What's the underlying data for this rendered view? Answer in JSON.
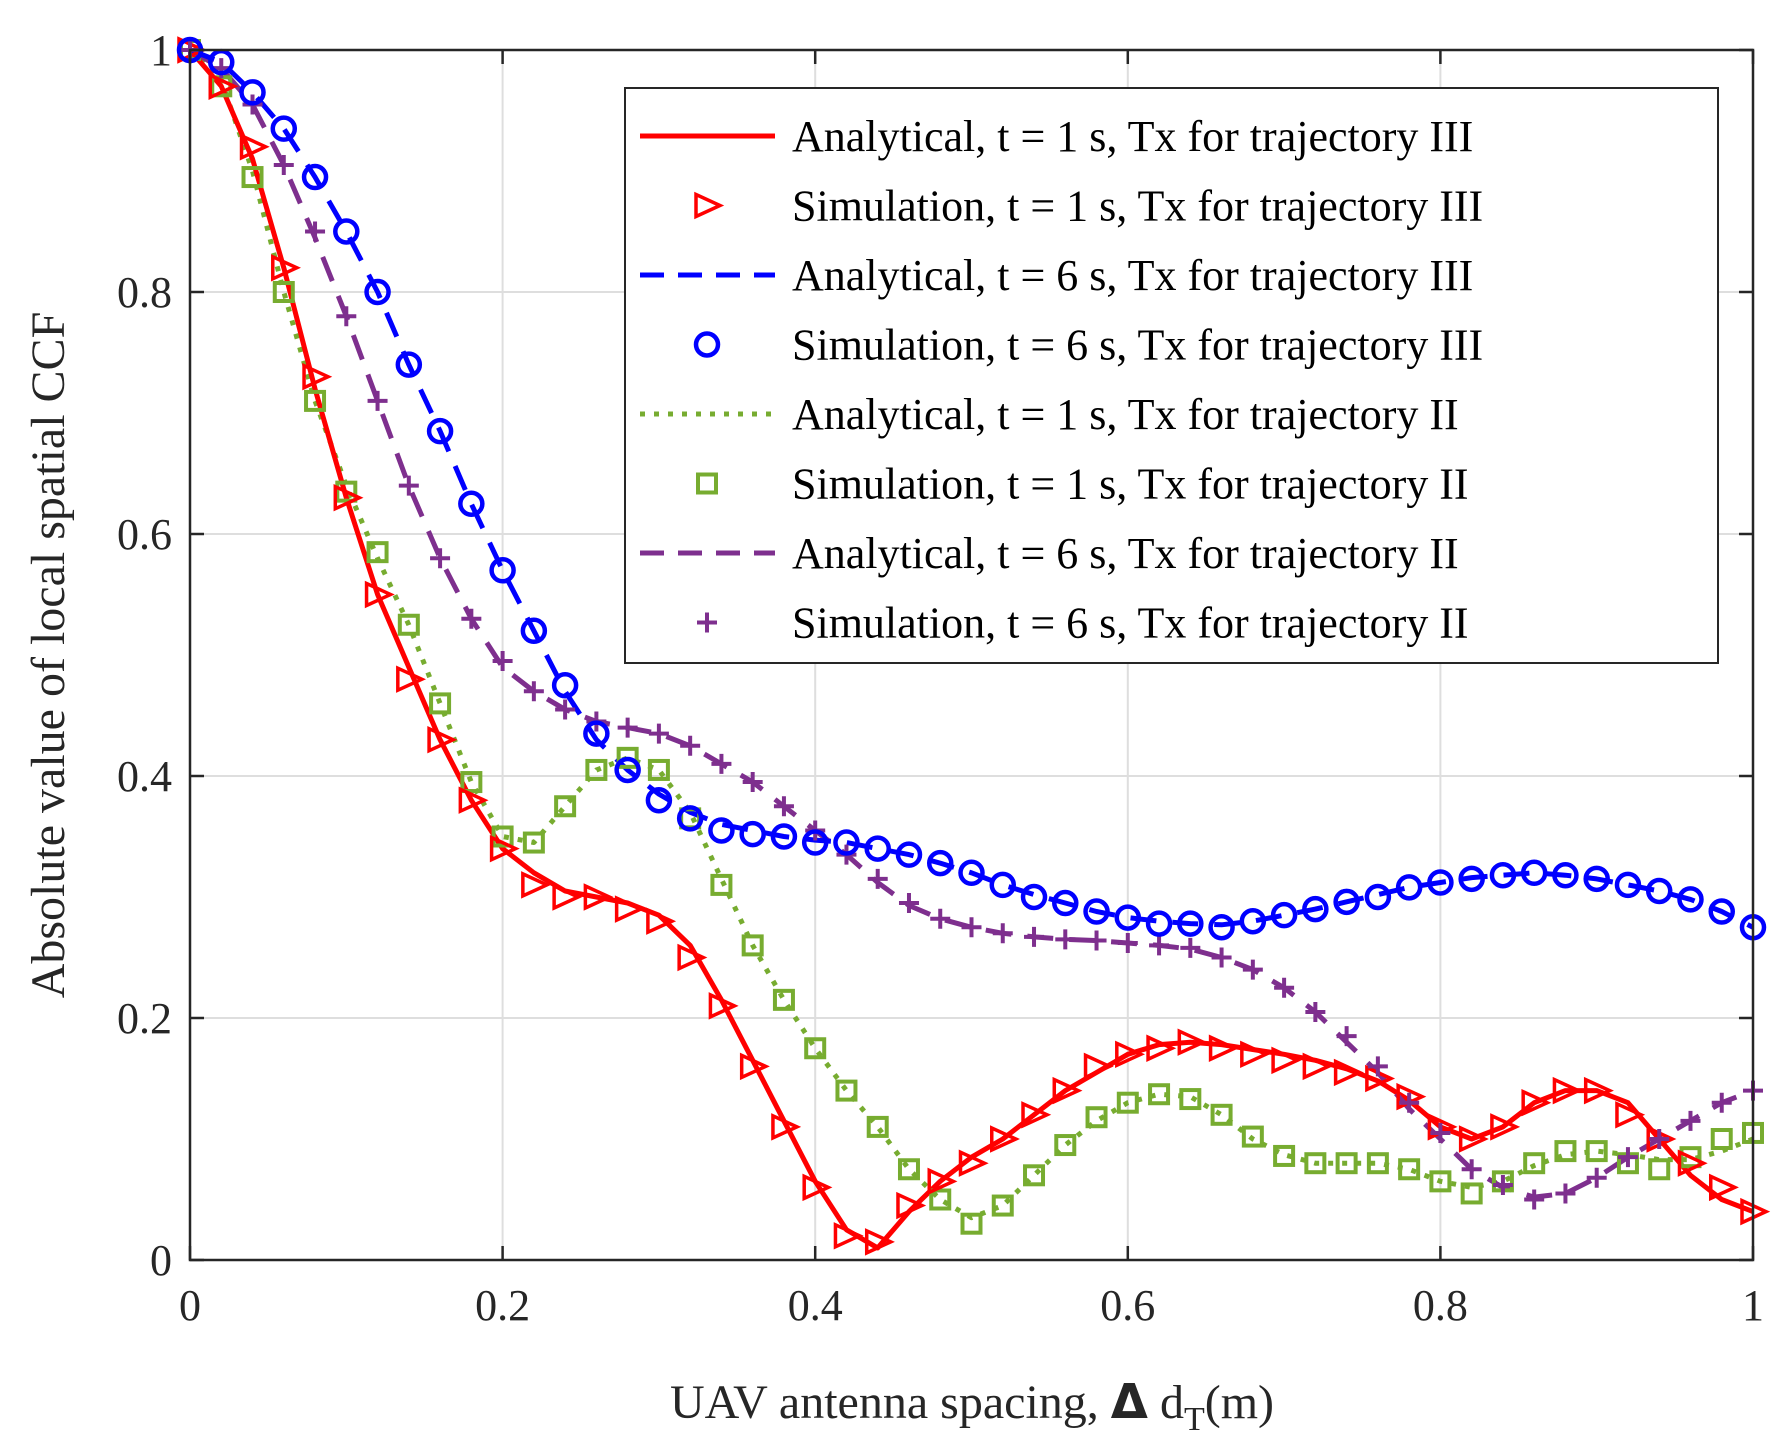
{
  "chart_data": {
    "type": "line",
    "xlabel_main": "UAV antenna spacing, ",
    "xlabel_delta": "Δ",
    "xlabel_d": " d",
    "xlabel_sub": "T",
    "xlabel_unit": "(m)",
    "ylabel": "Absolute value of local spatial CCF",
    "xlim": [
      0,
      1
    ],
    "ylim": [
      0,
      1
    ],
    "grid": true,
    "legend_position": "top-right",
    "x_ticks": [
      0,
      0.2,
      0.4,
      0.6,
      0.8,
      1
    ],
    "x_tick_labels": [
      "0",
      "0.2",
      "0.4",
      "0.6",
      "0.8",
      "1"
    ],
    "y_ticks": [
      0,
      0.2,
      0.4,
      0.6,
      0.8,
      1
    ],
    "y_tick_labels": [
      "0",
      "0.2",
      "0.4",
      "0.6",
      "0.8",
      "1"
    ],
    "sim_x": [
      0,
      0.02,
      0.04,
      0.06,
      0.08,
      0.1,
      0.12,
      0.14,
      0.16,
      0.18,
      0.2,
      0.22,
      0.24,
      0.26,
      0.28,
      0.3,
      0.32,
      0.34,
      0.36,
      0.38,
      0.4,
      0.42,
      0.44,
      0.46,
      0.48,
      0.5,
      0.52,
      0.54,
      0.56,
      0.58,
      0.6,
      0.62,
      0.64,
      0.66,
      0.68,
      0.7,
      0.72,
      0.74,
      0.76,
      0.78,
      0.8,
      0.82,
      0.84,
      0.86,
      0.88,
      0.9,
      0.92,
      0.94,
      0.96,
      0.98,
      1.0
    ],
    "series": [
      {
        "name": "Analytical, t = 1 s, Tx for trajectory III",
        "kind": "line",
        "color": "#ff0000",
        "dash": "solid",
        "x": [
          0,
          0.02,
          0.04,
          0.06,
          0.08,
          0.1,
          0.12,
          0.14,
          0.16,
          0.18,
          0.2,
          0.22,
          0.24,
          0.26,
          0.28,
          0.3,
          0.32,
          0.34,
          0.36,
          0.38,
          0.4,
          0.42,
          0.44,
          0.46,
          0.48,
          0.5,
          0.52,
          0.54,
          0.56,
          0.58,
          0.6,
          0.62,
          0.64,
          0.66,
          0.68,
          0.7,
          0.72,
          0.74,
          0.76,
          0.78,
          0.8,
          0.82,
          0.84,
          0.86,
          0.88,
          0.9,
          0.92,
          0.94,
          0.96,
          0.98,
          1.0
        ],
        "values": [
          1.0,
          0.97,
          0.91,
          0.82,
          0.72,
          0.63,
          0.55,
          0.49,
          0.43,
          0.38,
          0.34,
          0.32,
          0.305,
          0.3,
          0.295,
          0.285,
          0.26,
          0.215,
          0.165,
          0.115,
          0.065,
          0.025,
          0.01,
          0.04,
          0.065,
          0.085,
          0.1,
          0.12,
          0.14,
          0.155,
          0.17,
          0.178,
          0.18,
          0.178,
          0.174,
          0.17,
          0.165,
          0.158,
          0.148,
          0.132,
          0.11,
          0.1,
          0.11,
          0.13,
          0.14,
          0.14,
          0.13,
          0.1,
          0.07,
          0.05,
          0.04
        ]
      },
      {
        "name": "Simulation, t = 1 s, Tx for trajectory III",
        "kind": "marker",
        "marker": "triangle",
        "color": "#ff0000",
        "values": [
          1.0,
          0.97,
          0.92,
          0.82,
          0.73,
          0.63,
          0.55,
          0.48,
          0.43,
          0.38,
          0.34,
          0.31,
          0.3,
          0.3,
          0.29,
          0.28,
          0.25,
          0.21,
          0.16,
          0.11,
          0.06,
          0.02,
          0.015,
          0.045,
          0.065,
          0.08,
          0.1,
          0.12,
          0.14,
          0.16,
          0.17,
          0.175,
          0.18,
          0.175,
          0.17,
          0.165,
          0.16,
          0.155,
          0.15,
          0.135,
          0.11,
          0.1,
          0.11,
          0.13,
          0.14,
          0.14,
          0.12,
          0.1,
          0.08,
          0.06,
          0.04
        ]
      },
      {
        "name": "Analytical, t = 6 s, Tx for trajectory III",
        "kind": "line",
        "color": "#0000ff",
        "dash": "dashed",
        "x": [
          0,
          0.02,
          0.04,
          0.06,
          0.08,
          0.1,
          0.12,
          0.14,
          0.16,
          0.18,
          0.2,
          0.22,
          0.24,
          0.26,
          0.28,
          0.3,
          0.32,
          0.34,
          0.36,
          0.38,
          0.4,
          0.42,
          0.44,
          0.46,
          0.48,
          0.5,
          0.52,
          0.54,
          0.56,
          0.58,
          0.6,
          0.62,
          0.64,
          0.66,
          0.68,
          0.7,
          0.72,
          0.74,
          0.76,
          0.78,
          0.8,
          0.82,
          0.84,
          0.86,
          0.88,
          0.9,
          0.92,
          0.94,
          0.96,
          0.98,
          1.0
        ],
        "values": [
          1.0,
          0.99,
          0.965,
          0.935,
          0.895,
          0.85,
          0.8,
          0.74,
          0.685,
          0.625,
          0.57,
          0.52,
          0.47,
          0.43,
          0.405,
          0.385,
          0.37,
          0.36,
          0.355,
          0.35,
          0.347,
          0.345,
          0.34,
          0.335,
          0.328,
          0.32,
          0.31,
          0.302,
          0.295,
          0.288,
          0.283,
          0.28,
          0.278,
          0.277,
          0.28,
          0.285,
          0.29,
          0.296,
          0.302,
          0.308,
          0.312,
          0.316,
          0.318,
          0.32,
          0.318,
          0.315,
          0.31,
          0.305,
          0.298,
          0.288,
          0.275
        ]
      },
      {
        "name": "Simulation, t = 6 s, Tx for trajectory III",
        "kind": "marker",
        "marker": "circle",
        "color": "#0000ff",
        "values": [
          1.0,
          0.99,
          0.965,
          0.935,
          0.895,
          0.85,
          0.8,
          0.74,
          0.685,
          0.625,
          0.57,
          0.52,
          0.475,
          0.435,
          0.405,
          0.38,
          0.365,
          0.355,
          0.352,
          0.35,
          0.345,
          0.345,
          0.34,
          0.335,
          0.328,
          0.32,
          0.31,
          0.3,
          0.295,
          0.288,
          0.283,
          0.278,
          0.278,
          0.275,
          0.28,
          0.285,
          0.29,
          0.296,
          0.3,
          0.308,
          0.312,
          0.315,
          0.318,
          0.32,
          0.318,
          0.315,
          0.31,
          0.305,
          0.298,
          0.288,
          0.275
        ]
      },
      {
        "name": "Analytical, t = 1 s, Tx for trajectory II",
        "kind": "line",
        "color": "#77ac30",
        "dash": "dotted",
        "x": [
          0,
          0.02,
          0.04,
          0.06,
          0.08,
          0.1,
          0.12,
          0.14,
          0.16,
          0.18,
          0.2,
          0.22,
          0.24,
          0.26,
          0.28,
          0.3,
          0.32,
          0.34,
          0.36,
          0.38,
          0.4,
          0.42,
          0.44,
          0.46,
          0.48,
          0.5,
          0.52,
          0.54,
          0.56,
          0.58,
          0.6,
          0.62,
          0.64,
          0.66,
          0.68,
          0.7,
          0.72,
          0.74,
          0.76,
          0.78,
          0.8,
          0.82,
          0.84,
          0.86,
          0.88,
          0.9,
          0.92,
          0.94,
          0.96,
          0.98,
          1.0
        ],
        "values": [
          1.0,
          0.975,
          0.9,
          0.8,
          0.71,
          0.64,
          0.58,
          0.525,
          0.46,
          0.395,
          0.35,
          0.345,
          0.375,
          0.405,
          0.415,
          0.405,
          0.37,
          0.315,
          0.26,
          0.215,
          0.175,
          0.14,
          0.11,
          0.075,
          0.05,
          0.035,
          0.045,
          0.07,
          0.095,
          0.115,
          0.13,
          0.137,
          0.135,
          0.12,
          0.1,
          0.087,
          0.08,
          0.08,
          0.08,
          0.075,
          0.065,
          0.06,
          0.065,
          0.078,
          0.087,
          0.09,
          0.087,
          0.083,
          0.083,
          0.09,
          0.1
        ]
      },
      {
        "name": "Simulation, t = 1 s, Tx for trajectory II",
        "kind": "marker",
        "marker": "square",
        "color": "#77ac30",
        "values": [
          1.0,
          0.97,
          0.895,
          0.8,
          0.71,
          0.635,
          0.585,
          0.525,
          0.46,
          0.395,
          0.35,
          0.345,
          0.375,
          0.405,
          0.415,
          0.405,
          0.365,
          0.31,
          0.26,
          0.215,
          0.175,
          0.14,
          0.11,
          0.075,
          0.05,
          0.03,
          0.045,
          0.07,
          0.095,
          0.118,
          0.13,
          0.137,
          0.133,
          0.12,
          0.102,
          0.086,
          0.08,
          0.08,
          0.08,
          0.075,
          0.065,
          0.055,
          0.065,
          0.08,
          0.09,
          0.09,
          0.08,
          0.075,
          0.085,
          0.1,
          0.105
        ]
      },
      {
        "name": "Analytical, t = 6 s, Tx for trajectory II",
        "kind": "line",
        "color": "#7e2f8e",
        "dash": "dashed",
        "x": [
          0,
          0.02,
          0.04,
          0.06,
          0.08,
          0.1,
          0.12,
          0.14,
          0.16,
          0.18,
          0.2,
          0.22,
          0.24,
          0.26,
          0.28,
          0.3,
          0.32,
          0.34,
          0.36,
          0.38,
          0.4,
          0.42,
          0.44,
          0.46,
          0.48,
          0.5,
          0.52,
          0.54,
          0.56,
          0.58,
          0.6,
          0.62,
          0.64,
          0.66,
          0.68,
          0.7,
          0.72,
          0.74,
          0.76,
          0.78,
          0.8,
          0.82,
          0.84,
          0.86,
          0.88,
          0.9,
          0.92,
          0.94,
          0.96,
          0.98,
          1.0
        ],
        "values": [
          1.0,
          0.985,
          0.955,
          0.905,
          0.845,
          0.78,
          0.71,
          0.64,
          0.58,
          0.53,
          0.49,
          0.47,
          0.455,
          0.445,
          0.44,
          0.435,
          0.425,
          0.41,
          0.395,
          0.375,
          0.355,
          0.335,
          0.312,
          0.293,
          0.282,
          0.275,
          0.27,
          0.267,
          0.265,
          0.264,
          0.262,
          0.26,
          0.257,
          0.25,
          0.24,
          0.225,
          0.205,
          0.18,
          0.155,
          0.125,
          0.1,
          0.075,
          0.06,
          0.052,
          0.055,
          0.068,
          0.085,
          0.1,
          0.115,
          0.13,
          0.14
        ]
      },
      {
        "name": "Simulation, t = 6 s, Tx for trajectory II",
        "kind": "marker",
        "marker": "plus",
        "color": "#7e2f8e",
        "values": [
          1.0,
          0.985,
          0.955,
          0.905,
          0.85,
          0.78,
          0.71,
          0.64,
          0.58,
          0.53,
          0.495,
          0.47,
          0.455,
          0.445,
          0.44,
          0.435,
          0.425,
          0.41,
          0.395,
          0.375,
          0.355,
          0.335,
          0.315,
          0.295,
          0.282,
          0.275,
          0.27,
          0.267,
          0.265,
          0.264,
          0.262,
          0.26,
          0.258,
          0.25,
          0.24,
          0.225,
          0.205,
          0.185,
          0.16,
          0.13,
          0.105,
          0.075,
          0.062,
          0.05,
          0.055,
          0.068,
          0.085,
          0.1,
          0.115,
          0.13,
          0.14
        ]
      }
    ]
  }
}
